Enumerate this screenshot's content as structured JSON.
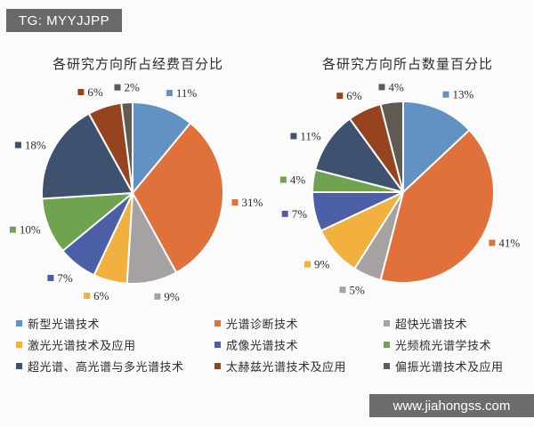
{
  "header": {
    "tag": "TG: MYYJJPP"
  },
  "watermark": {
    "url_text": "www.jiahongss.com"
  },
  "theme": {
    "page_bg": "#FBFBFB",
    "tag_bar_bg": "#696969",
    "watermark_bar_bg": "#6C6C6C",
    "chart_text_color": "#2D2D2D",
    "slice_stroke": "#FFFFFF",
    "series_colors": [
      "#6292C4",
      "#E0713A",
      "#A5A2A1",
      "#F2B13F",
      "#4A5FA6",
      "#6FA34F",
      "#3E5270",
      "#96431F",
      "#5F5A54"
    ]
  },
  "legend": {
    "position": "bottom",
    "columns": 3,
    "items": [
      {
        "label": "新型光谱技术",
        "color": "#6292C4"
      },
      {
        "label": "光谱诊断技术",
        "color": "#E0713A"
      },
      {
        "label": "超快光谱技术",
        "color": "#A5A2A1"
      },
      {
        "label": "激光光谱技术及应用",
        "color": "#F2B13F"
      },
      {
        "label": "成像光谱技术",
        "color": "#4A5FA6"
      },
      {
        "label": "光频梳光谱学技术",
        "color": "#6FA34F"
      },
      {
        "label": "超光谱、高光谱与多光谱技术",
        "color": "#3E5270"
      },
      {
        "label": "太赫兹光谱技术及应用",
        "color": "#96431F"
      },
      {
        "label": "偏振光谱技术及应用",
        "color": "#5F5A54"
      }
    ]
  },
  "chart_data": [
    {
      "type": "pie",
      "title": "各研究方向所占经费百分比",
      "categories": [
        "新型光谱技术",
        "光谱诊断技术",
        "超快光谱技术",
        "激光光谱技术及应用",
        "成像光谱技术",
        "光频梳光谱学技术",
        "超光谱、高光谱与多光谱技术",
        "太赫兹光谱技术及应用",
        "偏振光谱技术及应用"
      ],
      "values": [
        11,
        31,
        9,
        6,
        7,
        10,
        18,
        6,
        2
      ],
      "value_labels": [
        "11%",
        "31%",
        "9%",
        "6%",
        "7%",
        "10%",
        "18%",
        "6%",
        "2%"
      ],
      "unit": "percent",
      "start_angle_deg": 0,
      "direction": "clockwise",
      "data_labels": "outside-end",
      "legend_position": "bottom"
    },
    {
      "type": "pie",
      "title": "各研究方向所占数量百分比",
      "categories": [
        "新型光谱技术",
        "光谱诊断技术",
        "超快光谱技术",
        "激光光谱技术及应用",
        "成像光谱技术",
        "光频梳光谱学技术",
        "超光谱、高光谱与多光谱技术",
        "太赫兹光谱技术及应用",
        "偏振光谱技术及应用"
      ],
      "values": [
        13,
        41,
        5,
        9,
        7,
        4,
        11,
        6,
        4
      ],
      "value_labels": [
        "13%",
        "41%",
        "5%",
        "9%",
        "7%",
        "4%",
        "11%",
        "6%",
        "4%"
      ],
      "unit": "percent",
      "start_angle_deg": 0,
      "direction": "clockwise",
      "data_labels": "outside-end",
      "legend_position": "bottom"
    }
  ]
}
